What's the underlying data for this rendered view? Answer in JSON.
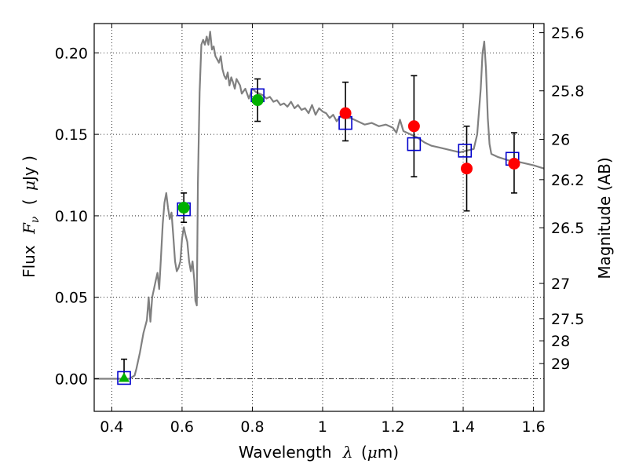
{
  "chart_data": {
    "type": "scatter",
    "xlabel": "Wavelength",
    "xlabel_symbol": "λ",
    "xlabel_unit_open": "(",
    "xlabel_unit_mu": "μ",
    "xlabel_unit_rest": "m)",
    "ylabel": "Flux",
    "ylabel_symbol": "F",
    "ylabel_subscript": "ν",
    "ylabel_unit_open": "(",
    "ylabel_unit_mu": "μ",
    "ylabel_unit_rest": "Jy )",
    "y2label": "Magnitude (AB)",
    "xlim": [
      0.35,
      1.63
    ],
    "ylim": [
      -0.02,
      0.218
    ],
    "grid": true,
    "x_ticks": [
      {
        "value": 0.4,
        "label": "0.4"
      },
      {
        "value": 0.6,
        "label": "0.6"
      },
      {
        "value": 0.8,
        "label": "0.8"
      },
      {
        "value": 1.0,
        "label": "1"
      },
      {
        "value": 1.2,
        "label": "1.2"
      },
      {
        "value": 1.4,
        "label": "1.4"
      },
      {
        "value": 1.6,
        "label": "1.6"
      }
    ],
    "y_ticks": [
      {
        "value": 0.0,
        "label": "0.00"
      },
      {
        "value": 0.05,
        "label": "0.05"
      },
      {
        "value": 0.1,
        "label": "0.10"
      },
      {
        "value": 0.15,
        "label": "0.15"
      },
      {
        "value": 0.2,
        "label": "0.20"
      }
    ],
    "mag_ticks": [
      {
        "label": "25.6",
        "flux": 0.2124
      },
      {
        "label": "25.8",
        "flux": 0.1767
      },
      {
        "label": "26",
        "flux": 0.1469
      },
      {
        "label": "26.2",
        "flux": 0.1222
      },
      {
        "label": "26.5",
        "flux": 0.0927
      },
      {
        "label": "27",
        "flux": 0.0585
      },
      {
        "label": "27.5",
        "flux": 0.0369
      },
      {
        "label": "28",
        "flux": 0.0233
      },
      {
        "label": "29",
        "flux": 0.0093
      }
    ],
    "series": [
      {
        "kind": "model_spectrum",
        "color": "#808080",
        "x": [
          0.35,
          0.45,
          0.465,
          0.47,
          0.48,
          0.49,
          0.5,
          0.505,
          0.51,
          0.515,
          0.52,
          0.525,
          0.53,
          0.535,
          0.54,
          0.545,
          0.55,
          0.555,
          0.56,
          0.565,
          0.57,
          0.575,
          0.58,
          0.585,
          0.59,
          0.595,
          0.6,
          0.605,
          0.61,
          0.615,
          0.62,
          0.625,
          0.63,
          0.635,
          0.638,
          0.642,
          0.645,
          0.65,
          0.655,
          0.66,
          0.665,
          0.67,
          0.675,
          0.68,
          0.685,
          0.69,
          0.695,
          0.7,
          0.705,
          0.71,
          0.715,
          0.72,
          0.725,
          0.73,
          0.735,
          0.74,
          0.745,
          0.75,
          0.755,
          0.76,
          0.765,
          0.77,
          0.78,
          0.79,
          0.8,
          0.81,
          0.82,
          0.83,
          0.84,
          0.85,
          0.86,
          0.87,
          0.88,
          0.89,
          0.9,
          0.91,
          0.92,
          0.93,
          0.94,
          0.95,
          0.96,
          0.97,
          0.98,
          0.99,
          1.0,
          1.01,
          1.02,
          1.03,
          1.04,
          1.05,
          1.06,
          1.08,
          1.1,
          1.12,
          1.14,
          1.16,
          1.18,
          1.2,
          1.21,
          1.22,
          1.23,
          1.25,
          1.27,
          1.29,
          1.31,
          1.33,
          1.35,
          1.37,
          1.39,
          1.41,
          1.43,
          1.44,
          1.45,
          1.455,
          1.46,
          1.465,
          1.47,
          1.475,
          1.48,
          1.5,
          1.53,
          1.56,
          1.6,
          1.63
        ],
        "y": [
          0.0,
          0.0,
          0.002,
          0.006,
          0.016,
          0.028,
          0.036,
          0.05,
          0.035,
          0.05,
          0.055,
          0.06,
          0.065,
          0.055,
          0.075,
          0.095,
          0.108,
          0.114,
          0.105,
          0.098,
          0.102,
          0.088,
          0.072,
          0.066,
          0.068,
          0.072,
          0.086,
          0.093,
          0.088,
          0.084,
          0.072,
          0.066,
          0.072,
          0.06,
          0.048,
          0.045,
          0.12,
          0.176,
          0.205,
          0.208,
          0.205,
          0.21,
          0.205,
          0.213,
          0.202,
          0.204,
          0.198,
          0.196,
          0.194,
          0.198,
          0.19,
          0.186,
          0.184,
          0.188,
          0.18,
          0.185,
          0.182,
          0.178,
          0.184,
          0.182,
          0.18,
          0.175,
          0.178,
          0.172,
          0.178,
          0.176,
          0.175,
          0.174,
          0.172,
          0.173,
          0.17,
          0.171,
          0.168,
          0.169,
          0.167,
          0.17,
          0.166,
          0.168,
          0.165,
          0.166,
          0.163,
          0.168,
          0.162,
          0.166,
          0.164,
          0.163,
          0.16,
          0.162,
          0.158,
          0.161,
          0.16,
          0.16,
          0.158,
          0.156,
          0.157,
          0.155,
          0.156,
          0.154,
          0.151,
          0.159,
          0.152,
          0.15,
          0.148,
          0.145,
          0.143,
          0.142,
          0.141,
          0.14,
          0.139,
          0.14,
          0.141,
          0.15,
          0.178,
          0.2,
          0.207,
          0.19,
          0.16,
          0.144,
          0.138,
          0.136,
          0.134,
          0.133,
          0.131,
          0.129
        ]
      },
      {
        "kind": "model_photometry",
        "marker": "open-square",
        "color": "#0000cc",
        "x": [
          0.435,
          0.605,
          0.815,
          1.065,
          1.26,
          1.405,
          1.54
        ],
        "y": [
          0.0005,
          0.104,
          0.174,
          0.157,
          0.144,
          0.14,
          0.135
        ]
      },
      {
        "kind": "optical_detections",
        "marker": "filled-circle",
        "color": "#00b000",
        "x": [
          0.605,
          0.815
        ],
        "y": [
          0.105,
          0.171
        ],
        "yerr_low": [
          0.096,
          0.158
        ],
        "yerr_high": [
          0.114,
          0.184
        ]
      },
      {
        "kind": "optical_nondetection",
        "marker": "filled-triangle",
        "color": "#00b000",
        "x": [
          0.435
        ],
        "y": [
          0.0005
        ],
        "yerr_low": [
          0.0
        ],
        "yerr_high": [
          0.012
        ]
      },
      {
        "kind": "infrared_detections",
        "marker": "filled-circle",
        "color": "#ff0000",
        "x": [
          1.065,
          1.26,
          1.41,
          1.545
        ],
        "y": [
          0.163,
          0.155,
          0.129,
          0.132
        ],
        "yerr_low": [
          0.146,
          0.124,
          0.103,
          0.114
        ],
        "yerr_high": [
          0.182,
          0.186,
          0.155,
          0.151
        ]
      }
    ]
  }
}
